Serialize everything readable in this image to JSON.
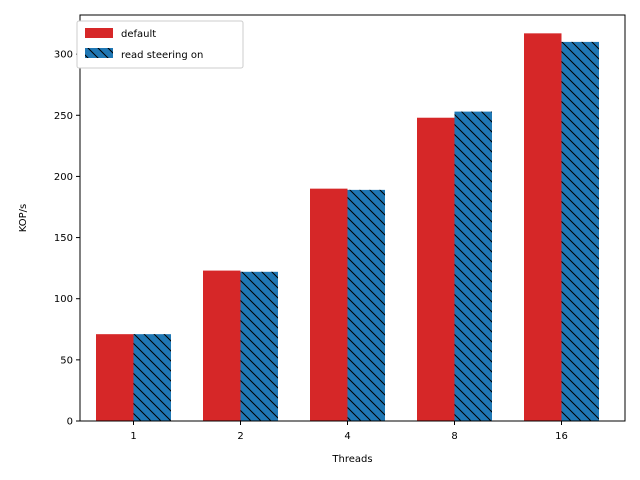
{
  "chart_data": {
    "type": "bar",
    "title": "",
    "xlabel": "Threads",
    "ylabel": "KOP/s",
    "categories": [
      "1",
      "2",
      "4",
      "8",
      "16"
    ],
    "ylim": [
      0,
      332
    ],
    "yticks": [
      0,
      50,
      100,
      150,
      200,
      250,
      300
    ],
    "grid": false,
    "legend_position": "top-left",
    "series": [
      {
        "name": "default",
        "color": "#d62728",
        "hatch": "none",
        "values": [
          71,
          123,
          190,
          248,
          317
        ]
      },
      {
        "name": "read steering on",
        "color": "#1f77b4",
        "hatch": "diagonal",
        "values": [
          71,
          122,
          189,
          253,
          310
        ]
      }
    ]
  }
}
